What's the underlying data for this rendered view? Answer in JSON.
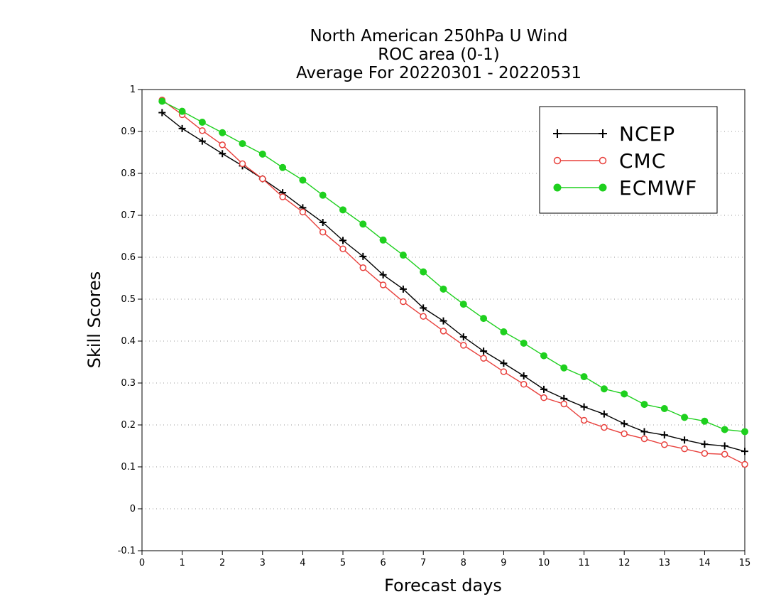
{
  "chart_data": {
    "type": "line",
    "title": [
      "North American 250hPa U Wind",
      "ROC area (0-1)",
      "Average For 20220301 - 20220531"
    ],
    "xlabel": "Forecast days",
    "ylabel": "Skill Scores",
    "xlim": [
      0,
      15
    ],
    "ylim": [
      -0.1,
      1
    ],
    "xticks": [
      0,
      1,
      2,
      3,
      4,
      5,
      6,
      7,
      8,
      9,
      10,
      11,
      12,
      13,
      14,
      15
    ],
    "xtick_labels": [
      "0",
      "1",
      "2",
      "3",
      "4",
      "5",
      "6",
      "7",
      "8",
      "9",
      "10",
      "11",
      "12",
      "13",
      "14",
      "15"
    ],
    "yticks": [
      -0.1,
      0,
      0.1,
      0.2,
      0.3,
      0.4,
      0.5,
      0.6,
      0.7,
      0.8,
      0.9,
      1
    ],
    "ytick_labels": [
      "-0.1",
      "0",
      "0.1",
      "0.2",
      "0.3",
      "0.4",
      "0.5",
      "0.6",
      "0.7",
      "0.8",
      "0.9",
      "1"
    ],
    "grid": "horizontal dotted",
    "legend_position": "top-right",
    "x": [
      0.5,
      1,
      1.5,
      2,
      2.5,
      3,
      3.5,
      4,
      4.5,
      5,
      5.5,
      6,
      6.5,
      7,
      7.5,
      8,
      8.5,
      9,
      9.5,
      10,
      10.5,
      11,
      11.5,
      12,
      12.5,
      13,
      13.5,
      14,
      14.5,
      15
    ],
    "series": [
      {
        "name": "NCEP",
        "color": "#000000",
        "marker": "plus",
        "values": [
          0.945,
          0.907,
          0.877,
          0.847,
          0.818,
          0.787,
          0.754,
          0.718,
          0.683,
          0.64,
          0.602,
          0.558,
          0.524,
          0.479,
          0.448,
          0.41,
          0.376,
          0.347,
          0.317,
          0.285,
          0.263,
          0.243,
          0.226,
          0.203,
          0.184,
          0.176,
          0.164,
          0.154,
          0.15,
          0.137
        ]
      },
      {
        "name": "CMC",
        "color": "#e8403c",
        "marker": "open-circle",
        "values": [
          0.975,
          0.94,
          0.902,
          0.868,
          0.823,
          0.787,
          0.744,
          0.708,
          0.66,
          0.62,
          0.575,
          0.534,
          0.494,
          0.459,
          0.424,
          0.39,
          0.359,
          0.327,
          0.297,
          0.265,
          0.25,
          0.211,
          0.194,
          0.179,
          0.167,
          0.153,
          0.143,
          0.132,
          0.13,
          0.106
        ]
      },
      {
        "name": "ECMWF",
        "color": "#1ed01e",
        "marker": "filled-circle",
        "values": [
          0.972,
          0.948,
          0.922,
          0.897,
          0.871,
          0.846,
          0.814,
          0.784,
          0.748,
          0.713,
          0.679,
          0.641,
          0.605,
          0.565,
          0.524,
          0.488,
          0.454,
          0.422,
          0.395,
          0.365,
          0.336,
          0.315,
          0.286,
          0.274,
          0.249,
          0.239,
          0.218,
          0.209,
          0.189,
          0.184
        ]
      }
    ]
  }
}
